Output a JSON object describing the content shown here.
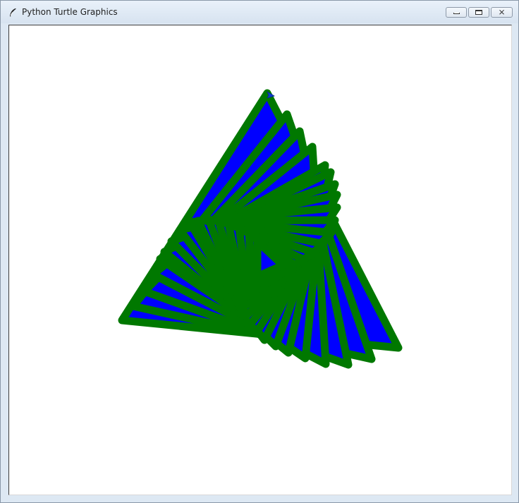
{
  "window": {
    "title": "Python Turtle Graphics",
    "icon": "feather-icon",
    "buttons": {
      "minimize": "minimize-icon",
      "maximize": "maximize-icon",
      "close": "close-icon",
      "close_glyph": "⨯"
    }
  },
  "canvas": {
    "background": "#ffffff",
    "fill_color": "#0000ff",
    "pen_color": "#007800",
    "turtle_color": "#0b3bd0",
    "turtle_shape": "arrow",
    "triangle_count": 16
  }
}
